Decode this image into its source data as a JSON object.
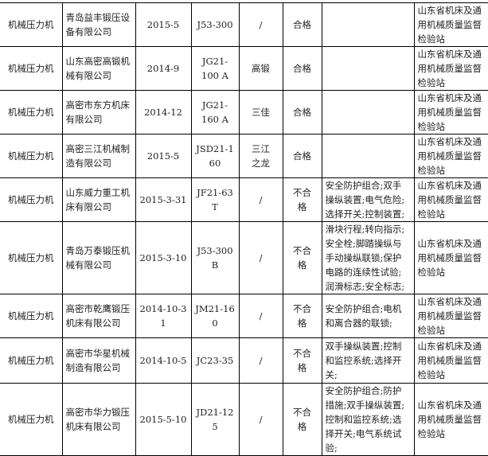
{
  "rows": [
    {
      "product": "机械压力机",
      "company": "青岛益丰锻压设备有限公司",
      "date": "2015-5",
      "model": "J53-300",
      "brand": "/",
      "result": "合格",
      "items": "",
      "org": "山东省机床及通用机械质量监督检验站"
    },
    {
      "product": "机械压力机",
      "company": "山东高密高锻机械有限公司",
      "date": "2014-9",
      "model": "JG21-100 A",
      "brand": "高锻",
      "result": "合格",
      "items": "",
      "org": "山东省机床及通用机械质量监督检验站"
    },
    {
      "product": "机械压力机",
      "company": "高密市东方机床有限公司",
      "date": "2014-12",
      "model": "JG21-160 A",
      "brand": "三佳",
      "result": "合格",
      "items": "",
      "org": "山东省机床及通用机械质量监督检验站"
    },
    {
      "product": "机械压力机",
      "company": "高密三江机械制造有限公司",
      "date": "2015-5",
      "model": "JSD21-160",
      "brand": "三江之龙",
      "result": "合格",
      "items": "",
      "org": "山东省机床及通用机械质量监督检验站"
    },
    {
      "product": "机械压力机",
      "company": "山东威力重工机床有限公司",
      "date": "2015-3-31",
      "model": "JF21-63T",
      "brand": "/",
      "result": "不合格",
      "items": "安全防护组合;双手操纵装置;电气危险;选择开关;控制装置;",
      "org": "山东省机床及通用机械质量监督检验站"
    },
    {
      "product": "机械压力机",
      "company": "青岛万泰锻压机械有限公司",
      "date": "2015-3-10",
      "model": "J53-300B",
      "brand": "/",
      "result": "不合格",
      "items": "滑块行程;转向指示;安全栓;脚踏操纵与手动操纵联锁;保护电路的连续性试验;润滑标志;安全标志;",
      "org": "山东省机床及通用机械质量监督检验站"
    },
    {
      "product": "机械压力机",
      "company": "高密市乾鹰锻压机床有限公司",
      "date": "2014-10-31",
      "model": "JM21-160",
      "brand": "/",
      "result": "不合格",
      "items": "安全防护组合;电机和离合器的联锁;",
      "org": "山东省机床及通用机械质量监督检验站"
    },
    {
      "product": "机械压力机",
      "company": "高密市华星机械制造有限公司",
      "date": "2014-10-5",
      "model": "JC23-35",
      "brand": "/",
      "result": "不合格",
      "items": "双手操纵装置;控制和监控系统;选择开关;",
      "org": "山东省机床及通用机械质量监督检验站"
    },
    {
      "product": "机械压力机",
      "company": "高密市华力锻压机床有限公司",
      "date": "2015-5-10",
      "model": "JD21-125",
      "brand": "/",
      "result": "不合格",
      "items": "安全防护组合;防护措施;双手操纵装置;控制和监控系统;选择开关;电气系统试验;",
      "org": "山东省机床及通用机械质量监督检验站"
    }
  ]
}
